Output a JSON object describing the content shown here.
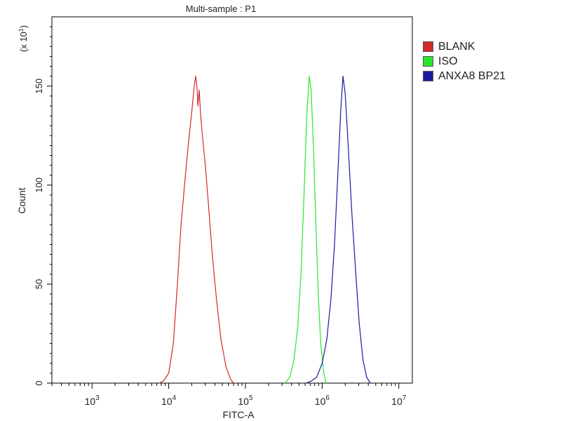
{
  "chart_data": {
    "type": "line",
    "title": "Multi-sample : P1",
    "xlabel": "FITC-A",
    "ylabel": "Count",
    "y_multiplier": "(x 10",
    "y_multiplier_exp": "1",
    "y_multiplier_close": ")",
    "x_scale": "log",
    "xlim": [
      300,
      15000000
    ],
    "ylim": [
      0,
      185
    ],
    "x_ticks": [
      {
        "value": 1000,
        "base": "10",
        "exp": "3"
      },
      {
        "value": 10000,
        "base": "10",
        "exp": "4"
      },
      {
        "value": 100000,
        "base": "10",
        "exp": "5"
      },
      {
        "value": 1000000,
        "base": "10",
        "exp": "6"
      },
      {
        "value": 10000000,
        "base": "10",
        "exp": "7"
      }
    ],
    "y_ticks": [
      0,
      50,
      100,
      150
    ],
    "grid": false,
    "legend_position": "right",
    "series": [
      {
        "name": "BLANK",
        "color": "#d02a2a",
        "points": [
          [
            7500,
            0
          ],
          [
            8500,
            1
          ],
          [
            10000,
            5
          ],
          [
            11500,
            20
          ],
          [
            13000,
            50
          ],
          [
            14500,
            80
          ],
          [
            16500,
            105
          ],
          [
            18500,
            125
          ],
          [
            20000,
            137
          ],
          [
            21500,
            150
          ],
          [
            22500,
            155
          ],
          [
            23500,
            148
          ],
          [
            24000,
            140
          ],
          [
            25000,
            148
          ],
          [
            26000,
            136
          ],
          [
            27500,
            125
          ],
          [
            30000,
            110
          ],
          [
            33000,
            90
          ],
          [
            37000,
            65
          ],
          [
            42000,
            42
          ],
          [
            48000,
            22
          ],
          [
            56000,
            8
          ],
          [
            64000,
            2
          ],
          [
            70000,
            0
          ]
        ]
      },
      {
        "name": "ISO",
        "color": "#2be52b",
        "points": [
          [
            330000,
            0
          ],
          [
            380000,
            3
          ],
          [
            430000,
            12
          ],
          [
            480000,
            28
          ],
          [
            530000,
            55
          ],
          [
            580000,
            95
          ],
          [
            630000,
            135
          ],
          [
            680000,
            155
          ],
          [
            720000,
            148
          ],
          [
            770000,
            120
          ],
          [
            830000,
            80
          ],
          [
            890000,
            45
          ],
          [
            960000,
            20
          ],
          [
            1050000,
            5
          ],
          [
            1130000,
            0
          ]
        ]
      },
      {
        "name": "ANXA8 BP21",
        "color": "#1a1aa0",
        "points": [
          [
            620000,
            0
          ],
          [
            720000,
            1
          ],
          [
            850000,
            3
          ],
          [
            1000000,
            10
          ],
          [
            1150000,
            22
          ],
          [
            1300000,
            42
          ],
          [
            1450000,
            70
          ],
          [
            1600000,
            105
          ],
          [
            1750000,
            138
          ],
          [
            1870000,
            155
          ],
          [
            2000000,
            146
          ],
          [
            2200000,
            118
          ],
          [
            2450000,
            85
          ],
          [
            2750000,
            55
          ],
          [
            3050000,
            30
          ],
          [
            3400000,
            12
          ],
          [
            3800000,
            3
          ],
          [
            4250000,
            0
          ]
        ]
      }
    ]
  }
}
